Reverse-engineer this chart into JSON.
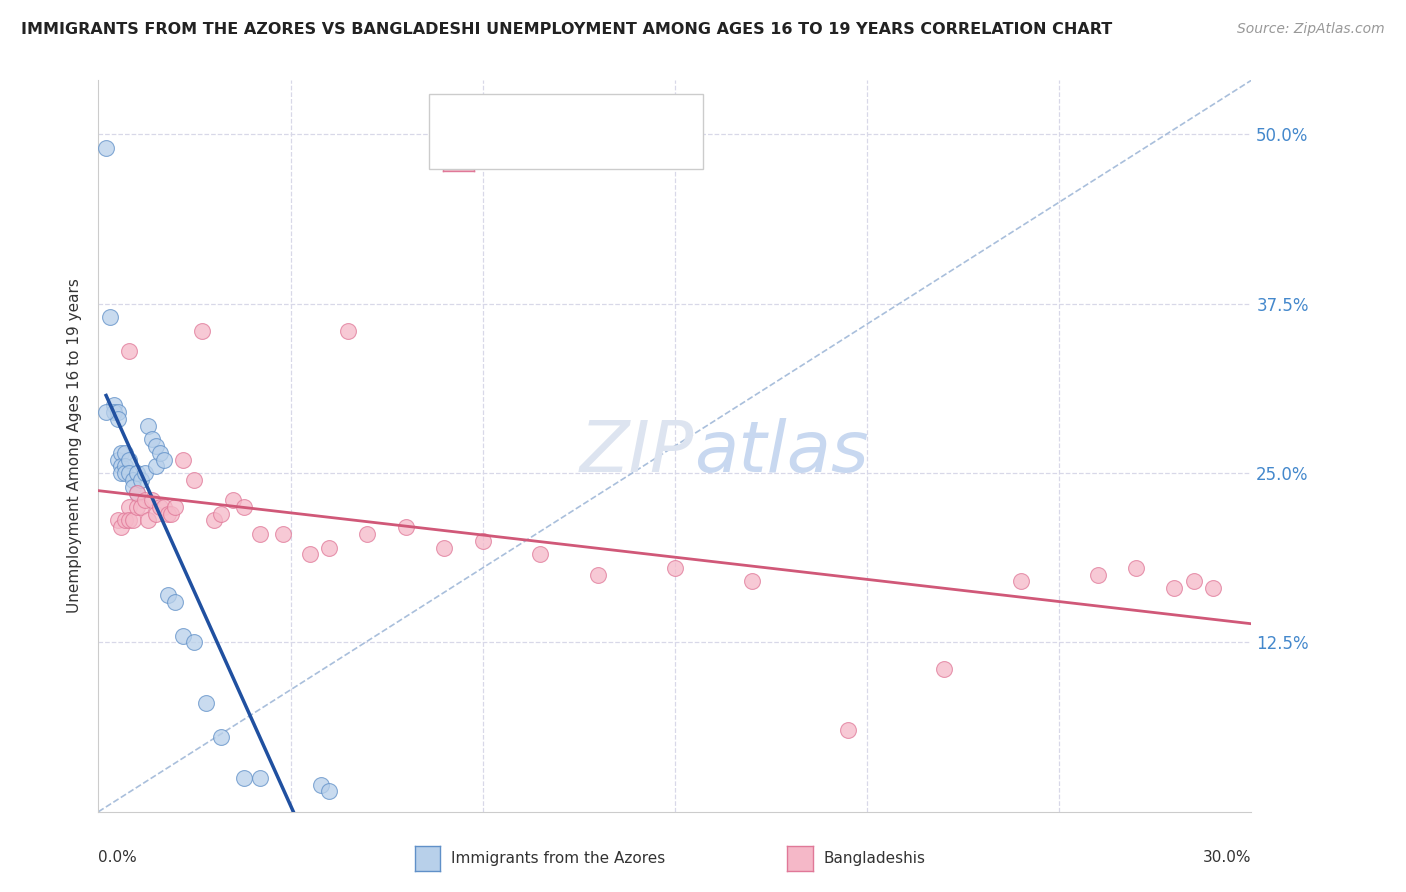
{
  "title": "IMMIGRANTS FROM THE AZORES VS BANGLADESHI UNEMPLOYMENT AMONG AGES 16 TO 19 YEARS CORRELATION CHART",
  "source": "Source: ZipAtlas.com",
  "ylabel": "Unemployment Among Ages 16 to 19 years",
  "xmin": 0.0,
  "xmax": 0.3,
  "ymin": 0.0,
  "ymax": 0.54,
  "color_azores_fill": "#b8d0ea",
  "color_azores_edge": "#6090c8",
  "color_bangladeshi_fill": "#f5b8c8",
  "color_bangladeshi_edge": "#e07898",
  "line_color_azores": "#2050a0",
  "line_color_bangladeshi": "#d05878",
  "diag_line_color": "#a0b8d8",
  "grid_color": "#d8d8e8",
  "azores_x": [
    0.002,
    0.003,
    0.004,
    0.004,
    0.005,
    0.005,
    0.005,
    0.006,
    0.006,
    0.006,
    0.007,
    0.007,
    0.007,
    0.008,
    0.008,
    0.009,
    0.009,
    0.01,
    0.01,
    0.011,
    0.012,
    0.013,
    0.014,
    0.015,
    0.015,
    0.016,
    0.017,
    0.018,
    0.02,
    0.022,
    0.025,
    0.028,
    0.032,
    0.038,
    0.042,
    0.058,
    0.06,
    0.002
  ],
  "azores_y": [
    0.49,
    0.365,
    0.3,
    0.295,
    0.295,
    0.29,
    0.26,
    0.265,
    0.255,
    0.25,
    0.265,
    0.255,
    0.25,
    0.26,
    0.25,
    0.245,
    0.24,
    0.25,
    0.235,
    0.245,
    0.25,
    0.285,
    0.275,
    0.27,
    0.255,
    0.265,
    0.26,
    0.16,
    0.155,
    0.13,
    0.125,
    0.08,
    0.055,
    0.025,
    0.025,
    0.02,
    0.015,
    0.295
  ],
  "bangladeshi_x": [
    0.005,
    0.006,
    0.007,
    0.008,
    0.008,
    0.009,
    0.01,
    0.01,
    0.011,
    0.012,
    0.013,
    0.014,
    0.015,
    0.016,
    0.017,
    0.018,
    0.019,
    0.02,
    0.022,
    0.025,
    0.027,
    0.03,
    0.032,
    0.035,
    0.038,
    0.042,
    0.048,
    0.055,
    0.06,
    0.065,
    0.07,
    0.08,
    0.09,
    0.1,
    0.115,
    0.13,
    0.15,
    0.17,
    0.195,
    0.22,
    0.24,
    0.26,
    0.27,
    0.28,
    0.285,
    0.29,
    0.008
  ],
  "bangladeshi_y": [
    0.215,
    0.21,
    0.215,
    0.225,
    0.215,
    0.215,
    0.225,
    0.235,
    0.225,
    0.23,
    0.215,
    0.23,
    0.22,
    0.225,
    0.225,
    0.22,
    0.22,
    0.225,
    0.26,
    0.245,
    0.355,
    0.215,
    0.22,
    0.23,
    0.225,
    0.205,
    0.205,
    0.19,
    0.195,
    0.355,
    0.205,
    0.21,
    0.195,
    0.2,
    0.19,
    0.175,
    0.18,
    0.17,
    0.06,
    0.105,
    0.17,
    0.175,
    0.18,
    0.165,
    0.17,
    0.165,
    0.34
  ]
}
